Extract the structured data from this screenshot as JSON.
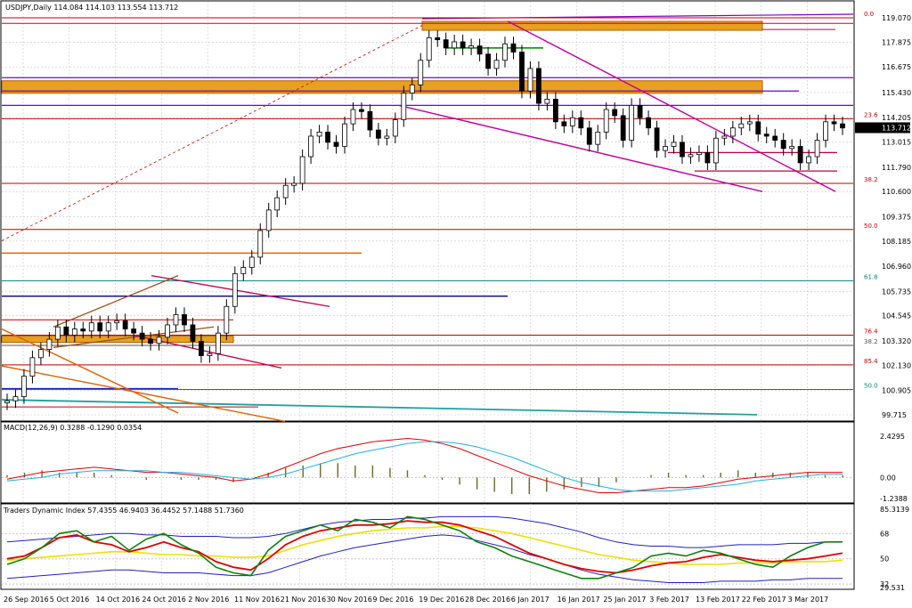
{
  "main": {
    "title": "USDJPY,Daily  114.084 114.103 113.554 113.712",
    "price_axis": [
      "119.070",
      "117.875",
      "116.675",
      "115.430",
      "114.205",
      "113.015",
      "111.790",
      "110.600",
      "109.375",
      "108.185",
      "106.960",
      "105.735",
      "104.545",
      "103.320",
      "102.130",
      "100.905",
      "99.715"
    ],
    "current_price": "113.712",
    "fib_levels": [
      {
        "label": "0.0",
        "price": 119.07,
        "color": "#c00000"
      },
      {
        "label": "23.6",
        "price": 114.15,
        "color": "#c00000"
      },
      {
        "label": "38.2",
        "price": 111.0,
        "color": "#c00000"
      },
      {
        "label": "50.0",
        "price": 108.75,
        "color": "#c00000"
      },
      {
        "label": "61.8",
        "price": 106.25,
        "color": "#008080"
      },
      {
        "label": "76.4",
        "price": 103.6,
        "color": "#c00000"
      },
      {
        "label": "38.2",
        "price": 103.1,
        "color": "#555555"
      },
      {
        "label": "85.4",
        "price": 102.15,
        "color": "#c00000"
      },
      {
        "label": "50.0",
        "price": 100.95,
        "color": "#008080"
      }
    ],
    "date_labels": [
      "26 Sep 2016",
      "5 Oct 2016",
      "14 Oct 2016",
      "24 Oct 2016",
      "2 Nov 2016",
      "11 Nov 2016",
      "21 Nov 2016",
      "30 Nov 2016",
      "9 Dec 2016",
      "19 Dec 2016",
      "28 Dec 2016",
      "6 Jan 2017",
      "16 Jan 2017",
      "25 Jan 2017",
      "3 Feb 2017",
      "13 Feb 2017",
      "22 Feb 2017",
      "3 Mar 2017"
    ]
  },
  "macd": {
    "title": "MACD(12,26,9) 0.3288 -0.1290 0.0354",
    "axis": [
      "2.4295",
      "0.00",
      "-1.2388"
    ]
  },
  "tdi": {
    "title": "Traders Dynamic Index 57.4355 46.9403 36.4452 57.1488 51.7360",
    "axis": [
      "85.3139",
      "68",
      "50",
      "32",
      "29.531"
    ]
  },
  "chart_data": [
    {
      "type": "candlestick",
      "title": "USDJPY,Daily",
      "ylim": [
        99.715,
        119.07
      ],
      "series": [
        {
          "name": "USDJPY",
          "close": [
            100.4,
            100.6,
            101.6,
            102.5,
            102.9,
            103.4,
            104.0,
            103.6,
            103.9,
            103.8,
            104.2,
            103.8,
            104.2,
            104.3,
            103.9,
            103.7,
            103.4,
            103.2,
            103.5,
            104.1,
            104.6,
            104.1,
            103.3,
            102.6,
            102.7,
            103.7,
            105.0,
            106.6,
            106.9,
            107.4,
            108.7,
            109.7,
            110.3,
            110.9,
            111.0,
            112.3,
            113.3,
            113.5,
            113.0,
            112.8,
            113.9,
            114.6,
            114.5,
            113.6,
            113.2,
            113.3,
            114.1,
            115.4,
            115.8,
            117.0,
            118.1,
            118.0,
            117.6,
            117.9,
            117.6,
            117.7,
            117.3,
            116.6,
            117.0,
            117.8,
            117.4,
            115.5,
            116.6,
            114.9,
            115.1,
            114.0,
            113.8,
            114.2,
            113.7,
            112.9,
            113.5,
            114.6,
            114.3,
            113.1,
            114.8,
            114.2,
            113.7,
            112.6,
            112.8,
            113.0,
            112.3,
            112.4,
            112.5,
            112.0,
            113.2,
            113.3,
            113.7,
            113.9,
            114.0,
            113.4,
            113.3,
            113.1,
            112.7,
            112.8,
            112.0,
            112.3,
            113.1,
            114.0,
            113.9,
            113.7
          ]
        }
      ],
      "x_labels": [
        "26 Sep 2016",
        "5 Oct 2016",
        "14 Oct 2016",
        "24 Oct 2016",
        "2 Nov 2016",
        "11 Nov 2016",
        "21 Nov 2016",
        "30 Nov 2016",
        "9 Dec 2016",
        "19 Dec 2016",
        "28 Dec 2016",
        "6 Jan 2017",
        "16 Jan 2017",
        "25 Jan 2017",
        "3 Feb 2017",
        "13 Feb 2017",
        "22 Feb 2017",
        "3 Mar 2017"
      ]
    },
    {
      "type": "line",
      "title": "MACD(12,26,9)",
      "ylim": [
        -1.2388,
        2.4295
      ],
      "series": [
        {
          "name": "MACD",
          "values": [
            -0.1,
            0.1,
            0.3,
            0.4,
            0.5,
            0.6,
            0.5,
            0.4,
            0.3,
            0.3,
            0.2,
            0.1,
            0.0,
            -0.2,
            -0.1,
            0.2,
            0.6,
            1.0,
            1.4,
            1.7,
            1.9,
            2.1,
            2.2,
            2.3,
            2.2,
            2.0,
            1.7,
            1.3,
            0.9,
            0.5,
            0.1,
            -0.2,
            -0.5,
            -0.7,
            -0.9,
            -0.9,
            -0.8,
            -0.7,
            -0.6,
            -0.6,
            -0.5,
            -0.3,
            -0.1,
            0.0,
            0.1,
            0.2,
            0.3,
            0.3,
            0.3
          ]
        },
        {
          "name": "Signal",
          "values": [
            -0.2,
            -0.1,
            0.0,
            0.2,
            0.3,
            0.4,
            0.4,
            0.4,
            0.4,
            0.3,
            0.3,
            0.2,
            0.1,
            0.0,
            -0.1,
            0.0,
            0.2,
            0.5,
            0.8,
            1.1,
            1.4,
            1.6,
            1.8,
            2.0,
            2.1,
            2.1,
            2.0,
            1.8,
            1.5,
            1.2,
            0.8,
            0.4,
            0.0,
            -0.3,
            -0.5,
            -0.7,
            -0.8,
            -0.8,
            -0.8,
            -0.7,
            -0.6,
            -0.5,
            -0.4,
            -0.2,
            -0.1,
            0.0,
            0.1,
            0.2,
            0.2
          ]
        }
      ]
    },
    {
      "type": "line",
      "title": "Traders Dynamic Index",
      "ylim": [
        29.531,
        85.3139
      ],
      "series": [
        {
          "name": "Upper band",
          "values": [
            62,
            63,
            64,
            65,
            66,
            67,
            68,
            68,
            67,
            67,
            66,
            66,
            66,
            65,
            65,
            66,
            68,
            71,
            74,
            76,
            77,
            78,
            78,
            79,
            79,
            80,
            80,
            80,
            80,
            79,
            77,
            75,
            72,
            69,
            65,
            62,
            60,
            59,
            59,
            58,
            58,
            59,
            60,
            60,
            60,
            61,
            61,
            62,
            62
          ]
        },
        {
          "name": "Lower band",
          "values": [
            36,
            37,
            38,
            39,
            40,
            41,
            42,
            42,
            41,
            40,
            40,
            40,
            39,
            38,
            38,
            40,
            44,
            48,
            52,
            55,
            58,
            60,
            62,
            64,
            66,
            67,
            66,
            63,
            60,
            57,
            53,
            50,
            46,
            42,
            39,
            37,
            35,
            34,
            33,
            33,
            33,
            34,
            34,
            34,
            35,
            35,
            36,
            36,
            36
          ]
        },
        {
          "name": "Middle",
          "values": [
            49,
            50,
            51,
            52,
            53,
            54,
            55,
            55,
            54,
            53,
            53,
            52,
            52,
            51,
            51,
            52,
            56,
            60,
            63,
            66,
            68,
            70,
            71,
            72,
            72,
            73,
            73,
            72,
            70,
            68,
            65,
            62,
            59,
            56,
            53,
            51,
            49,
            48,
            47,
            46,
            46,
            46,
            47,
            47,
            47,
            48,
            48,
            48,
            49
          ]
        },
        {
          "name": "RSI price",
          "values": [
            50,
            52,
            58,
            65,
            67,
            62,
            60,
            55,
            58,
            62,
            58,
            55,
            48,
            44,
            42,
            50,
            60,
            66,
            70,
            72,
            74,
            74,
            75,
            77,
            76,
            76,
            74,
            70,
            66,
            60,
            54,
            50,
            46,
            43,
            41,
            40,
            42,
            45,
            47,
            48,
            51,
            53,
            51,
            49,
            48,
            49,
            50,
            52,
            54
          ]
        },
        {
          "name": "Signal line",
          "values": [
            46,
            50,
            58,
            68,
            70,
            62,
            66,
            56,
            64,
            68,
            60,
            54,
            44,
            40,
            38,
            56,
            66,
            70,
            74,
            70,
            78,
            76,
            72,
            80,
            78,
            74,
            70,
            62,
            58,
            52,
            48,
            44,
            40,
            36,
            36,
            40,
            44,
            52,
            54,
            52,
            56,
            54,
            50,
            46,
            44,
            52,
            58,
            62,
            62
          ]
        }
      ]
    }
  ]
}
